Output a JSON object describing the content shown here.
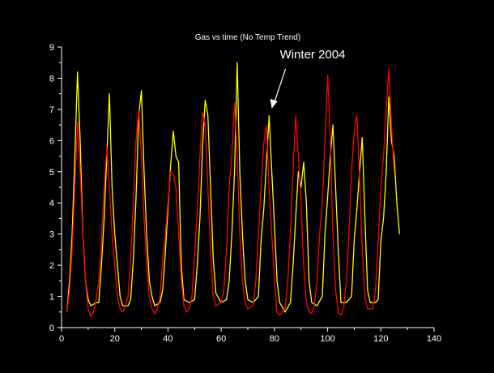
{
  "colors": {
    "background": "#000000",
    "axis": "#ffffff",
    "text": "#ffffff",
    "series_yellow": "#ffff00",
    "series_red": "#ff0000"
  },
  "chart_data": {
    "type": "line",
    "title": "Gas vs time (No Temp Trend)",
    "xlabel": "",
    "ylabel": "",
    "xlim": [
      0,
      140
    ],
    "ylim": [
      0,
      9
    ],
    "x_ticks": [
      0,
      20,
      40,
      60,
      80,
      100,
      120,
      140
    ],
    "y_ticks": [
      0,
      1,
      2,
      3,
      4,
      5,
      6,
      7,
      8,
      9
    ],
    "grid": false,
    "legend": "none",
    "annotations": [
      {
        "text": "Winter 2004",
        "arrow_to": [
          79,
          7.0
        ]
      }
    ],
    "series": [
      {
        "color": "#ffff00",
        "points": [
          [
            2,
            0.5
          ],
          [
            3,
            1.5
          ],
          [
            4,
            3.0
          ],
          [
            5,
            5.5
          ],
          [
            6,
            8.2
          ],
          [
            7,
            6.0
          ],
          [
            8,
            3.0
          ],
          [
            9,
            1.5
          ],
          [
            10,
            0.9
          ],
          [
            11,
            0.7
          ],
          [
            13,
            0.8
          ],
          [
            14,
            0.8
          ],
          [
            15,
            2.0
          ],
          [
            16,
            3.5
          ],
          [
            17,
            5.5
          ],
          [
            18,
            7.5
          ],
          [
            19,
            4.5
          ],
          [
            20,
            3.0
          ],
          [
            21,
            2.0
          ],
          [
            22,
            1.0
          ],
          [
            23,
            0.7
          ],
          [
            25,
            0.7
          ],
          [
            26,
            0.9
          ],
          [
            27,
            2.2
          ],
          [
            28,
            4.2
          ],
          [
            29,
            6.8
          ],
          [
            30,
            7.6
          ],
          [
            31,
            5.0
          ],
          [
            32,
            3.0
          ],
          [
            33,
            1.5
          ],
          [
            34,
            1.0
          ],
          [
            35,
            0.7
          ],
          [
            37,
            0.8
          ],
          [
            38,
            1.2
          ],
          [
            39,
            2.4
          ],
          [
            40,
            3.8
          ],
          [
            41,
            5.2
          ],
          [
            42,
            6.3
          ],
          [
            43,
            5.5
          ],
          [
            44,
            5.3
          ],
          [
            45,
            2.0
          ],
          [
            46,
            0.9
          ],
          [
            48,
            0.8
          ],
          [
            50,
            0.9
          ],
          [
            51,
            2.0
          ],
          [
            52,
            3.5
          ],
          [
            53,
            5.8
          ],
          [
            54,
            7.3
          ],
          [
            55,
            6.8
          ],
          [
            56,
            4.5
          ],
          [
            57,
            2.2
          ],
          [
            58,
            1.1
          ],
          [
            60,
            0.8
          ],
          [
            62,
            0.9
          ],
          [
            63,
            1.5
          ],
          [
            64,
            3.0
          ],
          [
            65,
            5.0
          ],
          [
            66,
            8.5
          ],
          [
            67,
            5.0
          ],
          [
            68,
            3.0
          ],
          [
            69,
            1.5
          ],
          [
            70,
            0.9
          ],
          [
            72,
            0.8
          ],
          [
            74,
            1.0
          ],
          [
            75,
            2.8
          ],
          [
            76,
            3.8
          ],
          [
            77,
            5.3
          ],
          [
            78,
            6.8
          ],
          [
            79,
            5.0
          ],
          [
            80,
            3.3
          ],
          [
            81,
            1.5
          ],
          [
            82,
            0.8
          ],
          [
            84,
            0.5
          ],
          [
            86,
            0.8
          ],
          [
            87,
            2.0
          ],
          [
            88,
            3.5
          ],
          [
            89,
            5.0
          ],
          [
            90,
            4.5
          ],
          [
            91,
            5.3
          ],
          [
            92,
            4.0
          ],
          [
            93,
            1.5
          ],
          [
            94,
            0.8
          ],
          [
            96,
            0.7
          ],
          [
            98,
            1.0
          ],
          [
            99,
            3.0
          ],
          [
            100,
            4.2
          ],
          [
            101,
            5.5
          ],
          [
            102,
            6.5
          ],
          [
            103,
            4.5
          ],
          [
            104,
            2.5
          ],
          [
            105,
            0.8
          ],
          [
            107,
            0.8
          ],
          [
            109,
            1.0
          ],
          [
            110,
            2.8
          ],
          [
            111,
            3.8
          ],
          [
            112,
            5.0
          ],
          [
            113,
            6.1
          ],
          [
            114,
            3.5
          ],
          [
            115,
            1.2
          ],
          [
            116,
            0.8
          ],
          [
            118,
            0.8
          ],
          [
            119,
            0.9
          ],
          [
            120,
            2.8
          ],
          [
            121,
            3.5
          ],
          [
            122,
            5.0
          ],
          [
            123,
            7.4
          ],
          [
            124,
            6.0
          ],
          [
            125,
            5.5
          ],
          [
            126,
            4.0
          ],
          [
            127,
            3.0
          ]
        ]
      },
      {
        "color": "#ff0000",
        "points": [
          [
            2,
            0.5
          ],
          [
            3,
            1.2
          ],
          [
            4,
            2.5
          ],
          [
            5,
            4.5
          ],
          [
            6,
            6.6
          ],
          [
            7,
            5.0
          ],
          [
            8,
            3.0
          ],
          [
            9,
            1.5
          ],
          [
            10,
            0.6
          ],
          [
            11,
            0.35
          ],
          [
            12,
            0.5
          ],
          [
            13,
            0.9
          ],
          [
            14,
            1.5
          ],
          [
            15,
            2.8
          ],
          [
            16,
            4.5
          ],
          [
            17,
            5.8
          ],
          [
            18,
            4.5
          ],
          [
            19,
            3.0
          ],
          [
            20,
            2.0
          ],
          [
            21,
            1.0
          ],
          [
            22,
            0.6
          ],
          [
            23,
            0.5
          ],
          [
            24,
            0.7
          ],
          [
            25,
            1.0
          ],
          [
            26,
            2.2
          ],
          [
            27,
            4.0
          ],
          [
            28,
            6.0
          ],
          [
            29,
            7.0
          ],
          [
            30,
            5.5
          ],
          [
            31,
            3.5
          ],
          [
            32,
            2.0
          ],
          [
            33,
            1.0
          ],
          [
            34,
            0.6
          ],
          [
            35,
            0.45
          ],
          [
            36,
            0.6
          ],
          [
            37,
            1.0
          ],
          [
            38,
            2.2
          ],
          [
            39,
            3.0
          ],
          [
            40,
            4.0
          ],
          [
            41,
            5.0
          ],
          [
            42,
            4.9
          ],
          [
            43,
            4.5
          ],
          [
            44,
            3.0
          ],
          [
            45,
            1.5
          ],
          [
            46,
            0.7
          ],
          [
            47,
            0.5
          ],
          [
            48,
            0.6
          ],
          [
            49,
            1.0
          ],
          [
            50,
            2.3
          ],
          [
            51,
            3.8
          ],
          [
            52,
            5.5
          ],
          [
            53,
            6.9
          ],
          [
            54,
            6.5
          ],
          [
            55,
            4.5
          ],
          [
            56,
            2.5
          ],
          [
            57,
            1.0
          ],
          [
            58,
            0.7
          ],
          [
            60,
            0.8
          ],
          [
            61,
            1.2
          ],
          [
            62,
            2.5
          ],
          [
            63,
            4.5
          ],
          [
            64,
            5.5
          ],
          [
            65,
            7.2
          ],
          [
            66,
            5.5
          ],
          [
            67,
            3.0
          ],
          [
            68,
            1.5
          ],
          [
            69,
            0.8
          ],
          [
            70,
            0.6
          ],
          [
            72,
            0.7
          ],
          [
            73,
            1.5
          ],
          [
            74,
            3.0
          ],
          [
            75,
            4.5
          ],
          [
            76,
            5.9
          ],
          [
            77,
            6.5
          ],
          [
            78,
            4.5
          ],
          [
            79,
            3.0
          ],
          [
            80,
            1.5
          ],
          [
            81,
            0.5
          ],
          [
            82,
            0.4
          ],
          [
            84,
            0.6
          ],
          [
            85,
            1.5
          ],
          [
            86,
            3.0
          ],
          [
            87,
            5.0
          ],
          [
            88,
            6.8
          ],
          [
            89,
            5.5
          ],
          [
            90,
            4.0
          ],
          [
            91,
            2.0
          ],
          [
            92,
            0.8
          ],
          [
            93,
            0.5
          ],
          [
            94,
            0.45
          ],
          [
            95,
            0.7
          ],
          [
            96,
            1.5
          ],
          [
            97,
            3.0
          ],
          [
            98,
            4.0
          ],
          [
            99,
            6.0
          ],
          [
            100,
            8.1
          ],
          [
            101,
            6.0
          ],
          [
            102,
            3.0
          ],
          [
            103,
            1.2
          ],
          [
            104,
            0.5
          ],
          [
            105,
            0.4
          ],
          [
            106,
            0.6
          ],
          [
            107,
            1.5
          ],
          [
            108,
            3.0
          ],
          [
            109,
            5.0
          ],
          [
            110,
            6.3
          ],
          [
            111,
            6.8
          ],
          [
            112,
            4.8
          ],
          [
            113,
            2.5
          ],
          [
            114,
            1.0
          ],
          [
            115,
            0.6
          ],
          [
            117,
            0.6
          ],
          [
            118,
            1.2
          ],
          [
            119,
            2.8
          ],
          [
            120,
            4.5
          ],
          [
            121,
            5.5
          ],
          [
            122,
            7.0
          ],
          [
            123,
            8.3
          ],
          [
            124,
            6.5
          ],
          [
            125,
            5.0
          ]
        ]
      }
    ]
  }
}
